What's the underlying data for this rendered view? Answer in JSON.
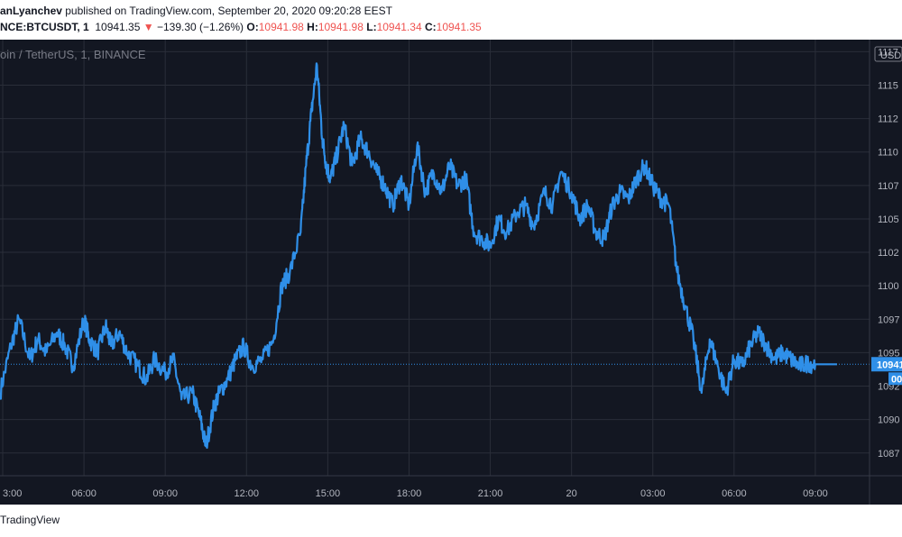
{
  "header": {
    "publisher": "anLyanchev",
    "published_text": " published on TradingView.com, September 20, 2020 09:20:28 EEST",
    "symbol": "NCE:BTCUSDT, 1",
    "last": "10941.35",
    "change_arrow": "▼",
    "change": "−139.30 (−1.26%)",
    "o_label": "O:",
    "o_value": "10941.98",
    "h_label": "H:",
    "h_value": "10941.98",
    "l_label": "L:",
    "l_value": "10941.34",
    "c_label": "C:",
    "c_value": "10941.35"
  },
  "footer": {
    "brand": "TradingView"
  },
  "colors": {
    "background": "#131722",
    "grid": "#2a2e39",
    "line": "#2f8fe8",
    "last_price_label": "#2f8fe8",
    "down": "#ef5350"
  },
  "chart_data": {
    "type": "line",
    "title": "oin / TetherUS, 1, BINANCE",
    "currency_label": "USD",
    "price_label": "10941",
    "price_label_sub": "00",
    "x_tick_labels": [
      "3:00",
      "06:00",
      "09:00",
      "12:00",
      "15:00",
      "18:00",
      "21:00",
      "20",
      "03:00",
      "06:00",
      "09:00"
    ],
    "x_tick_hours": [
      3,
      6,
      9,
      12,
      15,
      18,
      21,
      24,
      27,
      30,
      33
    ],
    "y_tick_labels": [
      "1117",
      "1115",
      "1112",
      "1110",
      "1107",
      "1105",
      "1102",
      "1100",
      "1097",
      "1095",
      "1092",
      "1090",
      "1087"
    ],
    "y_tick_values": [
      11175,
      11150,
      11125,
      11100,
      11075,
      11050,
      11025,
      11000,
      10975,
      10950,
      10925,
      10900,
      10875
    ],
    "xlim": [
      2.9,
      35.0
    ],
    "ylim": [
      10858,
      11184
    ],
    "last_price": 10941.35,
    "grid": true,
    "x": [
      2.9,
      3.3,
      3.6,
      4.0,
      4.3,
      4.6,
      5.0,
      5.3,
      5.6,
      6.0,
      6.2,
      6.5,
      6.8,
      7.0,
      7.3,
      7.6,
      8.0,
      8.3,
      8.6,
      9.0,
      9.3,
      9.6,
      10.0,
      10.3,
      10.5,
      10.8,
      11.0,
      11.3,
      11.6,
      11.9,
      12.2,
      12.6,
      13.0,
      13.3,
      13.6,
      14.0,
      14.2,
      14.4,
      14.6,
      14.8,
      14.95,
      15.1,
      15.3,
      15.6,
      15.9,
      16.2,
      16.5,
      16.8,
      17.1,
      17.4,
      17.7,
      18.0,
      18.3,
      18.6,
      18.9,
      19.2,
      19.5,
      19.8,
      20.1,
      20.4,
      20.7,
      21.0,
      21.3,
      21.6,
      22.0,
      22.3,
      22.6,
      23.0,
      23.3,
      23.6,
      24.0,
      24.3,
      24.6,
      24.9,
      25.2,
      25.5,
      25.8,
      26.1,
      26.4,
      26.7,
      27.0,
      27.3,
      27.6,
      27.9,
      28.2,
      28.5,
      28.8,
      29.1,
      29.4,
      29.7,
      30.0,
      30.3,
      30.6,
      30.9,
      31.2,
      31.5,
      31.8,
      32.1,
      32.4,
      32.7,
      33.0,
      33.3,
      33.6,
      33.8
    ],
    "y": [
      10920,
      10955,
      10975,
      10945,
      10960,
      10950,
      10965,
      10955,
      10940,
      10975,
      10960,
      10950,
      10970,
      10955,
      10965,
      10950,
      10940,
      10930,
      10945,
      10935,
      10945,
      10915,
      10920,
      10900,
      10880,
      10910,
      10920,
      10930,
      10945,
      10955,
      10940,
      10945,
      10960,
      11000,
      11010,
      11040,
      11090,
      11130,
      11165,
      11110,
      11090,
      11080,
      11095,
      11120,
      11090,
      11110,
      11100,
      11085,
      11075,
      11060,
      11080,
      11060,
      11105,
      11070,
      11085,
      11070,
      11090,
      11075,
      11080,
      11040,
      11035,
      11030,
      11050,
      11040,
      11055,
      11060,
      11045,
      11070,
      11060,
      11085,
      11070,
      11050,
      11060,
      11040,
      11035,
      11060,
      11070,
      11065,
      11080,
      11090,
      11075,
      11065,
      11060,
      11010,
      10985,
      10960,
      10920,
      10960,
      10940,
      10920,
      10945,
      10940,
      10955,
      10965,
      10955,
      10945,
      10950,
      10945,
      10940,
      10942,
      10941.35,
      10941.35,
      10941.35,
      10941.35
    ]
  }
}
